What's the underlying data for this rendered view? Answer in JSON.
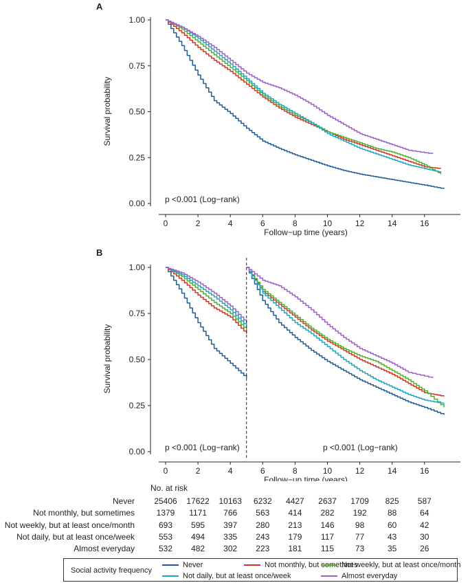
{
  "panels": [
    {
      "letter": "A",
      "ylabel": "Survival probability",
      "xlabel": "Follow−up time (years)",
      "yticks": [
        "0.00",
        "0.25",
        "0.50",
        "0.75",
        "1.00"
      ],
      "xticks": [
        "0",
        "2",
        "4",
        "6",
        "8",
        "10",
        "12",
        "14",
        "16"
      ],
      "annotations": [
        "p <0.001 (Log−rank)"
      ]
    },
    {
      "letter": "B",
      "ylabel": "Survival probability",
      "xlabel": "Follow−up time (years)",
      "yticks": [
        "0.00",
        "0.25",
        "0.50",
        "0.75",
        "1.00"
      ],
      "xticks": [
        "0",
        "2",
        "4",
        "6",
        "8",
        "10",
        "12",
        "14",
        "16"
      ],
      "annotations": [
        "p <0.001 (Log−rank)",
        "p <0.001 (Log−rank)"
      ]
    }
  ],
  "chart_data": [
    {
      "type": "line",
      "title": "A",
      "xlabel": "Follow−up time (years)",
      "ylabel": "Survival probability",
      "xlim": [
        -1,
        18.5
      ],
      "ylim": [
        0,
        1
      ],
      "series": [
        {
          "name": "Never",
          "color": "#1f5a96",
          "x": [
            0,
            1,
            2,
            3,
            4,
            5,
            6,
            7,
            8,
            9,
            10,
            11,
            12,
            13,
            14,
            15,
            16,
            17.2
          ],
          "y": [
            1.0,
            0.86,
            0.7,
            0.56,
            0.49,
            0.41,
            0.34,
            0.3,
            0.265,
            0.235,
            0.205,
            0.18,
            0.16,
            0.145,
            0.13,
            0.115,
            0.1,
            0.08
          ]
        },
        {
          "name": "Not monthly, but sometimes",
          "color": "#d7301f",
          "x": [
            0,
            1,
            2,
            3,
            4,
            5,
            6,
            7,
            8,
            9,
            10,
            11,
            12,
            13,
            14,
            15,
            16,
            17
          ],
          "y": [
            1.0,
            0.93,
            0.85,
            0.78,
            0.72,
            0.65,
            0.58,
            0.52,
            0.47,
            0.43,
            0.39,
            0.35,
            0.32,
            0.29,
            0.26,
            0.23,
            0.2,
            0.19
          ]
        },
        {
          "name": "Not weekly, but at least once/month",
          "color": "#4caf2a",
          "x": [
            0,
            1,
            2,
            3,
            4,
            5,
            6,
            7,
            8,
            9,
            10,
            11,
            12,
            13,
            14,
            15,
            16,
            17
          ],
          "y": [
            1.0,
            0.95,
            0.88,
            0.81,
            0.74,
            0.67,
            0.59,
            0.53,
            0.48,
            0.44,
            0.39,
            0.36,
            0.33,
            0.3,
            0.28,
            0.25,
            0.21,
            0.16
          ]
        },
        {
          "name": "Not daily, but at least once/week",
          "color": "#1aa5c4",
          "x": [
            0,
            1,
            2,
            3,
            4,
            5,
            6,
            7,
            8,
            9,
            10,
            11,
            12,
            13,
            14,
            15,
            16,
            17
          ],
          "y": [
            1.0,
            0.96,
            0.9,
            0.83,
            0.76,
            0.68,
            0.6,
            0.54,
            0.49,
            0.44,
            0.38,
            0.34,
            0.3,
            0.27,
            0.24,
            0.21,
            0.19,
            0.17
          ]
        },
        {
          "name": "Almost everyday",
          "color": "#9e5cc8",
          "x": [
            0,
            1,
            2,
            3,
            4,
            5,
            6,
            7,
            8,
            9,
            10,
            11,
            12,
            13,
            14,
            15,
            16.5
          ],
          "y": [
            1.0,
            0.96,
            0.91,
            0.85,
            0.78,
            0.71,
            0.66,
            0.63,
            0.59,
            0.54,
            0.48,
            0.43,
            0.38,
            0.35,
            0.32,
            0.29,
            0.27
          ]
        }
      ]
    },
    {
      "type": "line",
      "title": "B",
      "xlabel": "Follow−up time (years)",
      "ylabel": "Survival probability",
      "xlim": [
        -1,
        18.5
      ],
      "ylim": [
        0,
        1
      ],
      "breakpoint_x": 5,
      "series": [
        {
          "name": "Never",
          "color": "#1f5a96",
          "x": [
            0,
            1,
            2,
            3,
            4,
            5,
            5,
            6,
            7,
            8,
            9,
            10,
            11,
            12,
            13,
            14,
            15,
            16,
            17.2
          ],
          "y": [
            1.0,
            0.86,
            0.7,
            0.56,
            0.48,
            0.4,
            1.0,
            0.82,
            0.7,
            0.62,
            0.55,
            0.49,
            0.44,
            0.39,
            0.35,
            0.31,
            0.27,
            0.24,
            0.2
          ]
        },
        {
          "name": "Not monthly, but sometimes",
          "color": "#d7301f",
          "x": [
            0,
            1,
            2,
            3,
            4,
            5,
            5,
            6,
            7,
            8,
            9,
            10,
            11,
            12,
            13,
            14,
            15,
            16,
            17.2
          ],
          "y": [
            1.0,
            0.93,
            0.85,
            0.78,
            0.73,
            0.64,
            1.0,
            0.87,
            0.8,
            0.73,
            0.66,
            0.6,
            0.55,
            0.5,
            0.46,
            0.42,
            0.37,
            0.32,
            0.3
          ]
        },
        {
          "name": "Not weekly, but at least once/month",
          "color": "#4caf2a",
          "x": [
            0,
            1,
            2,
            3,
            4,
            5,
            5,
            6,
            7,
            8,
            9,
            10,
            11,
            12,
            13,
            14,
            15,
            16,
            17.2
          ],
          "y": [
            1.0,
            0.95,
            0.88,
            0.81,
            0.75,
            0.66,
            1.0,
            0.88,
            0.81,
            0.74,
            0.67,
            0.61,
            0.56,
            0.52,
            0.49,
            0.44,
            0.39,
            0.33,
            0.24
          ]
        },
        {
          "name": "Not daily, but at least once/week",
          "color": "#1aa5c4",
          "x": [
            0,
            1,
            2,
            3,
            4,
            5,
            5,
            6,
            7,
            8,
            9,
            10,
            11,
            12,
            13,
            14,
            15,
            16,
            17.2
          ],
          "y": [
            1.0,
            0.96,
            0.9,
            0.84,
            0.77,
            0.68,
            1.0,
            0.86,
            0.78,
            0.7,
            0.64,
            0.57,
            0.5,
            0.44,
            0.39,
            0.35,
            0.31,
            0.28,
            0.26
          ]
        },
        {
          "name": "Almost everyday",
          "color": "#9e5cc8",
          "x": [
            0,
            1,
            2,
            3,
            4,
            5,
            5,
            6,
            7,
            8,
            9,
            10,
            11,
            12,
            13,
            14,
            15,
            16.5
          ],
          "y": [
            1.0,
            0.97,
            0.92,
            0.86,
            0.79,
            0.7,
            1.0,
            0.93,
            0.9,
            0.84,
            0.77,
            0.69,
            0.62,
            0.56,
            0.52,
            0.48,
            0.43,
            0.4
          ]
        }
      ]
    }
  ],
  "risk_table": {
    "title": "No. at risk",
    "times": [
      0,
      2,
      4,
      6,
      8,
      10,
      12,
      14,
      16
    ],
    "rows": [
      {
        "label": "Never",
        "values": [
          "25406",
          "17622",
          "10163",
          "6232",
          "4427",
          "2637",
          "1709",
          "825",
          "587"
        ]
      },
      {
        "label": "Not monthly, but sometimes",
        "values": [
          "1379",
          "1171",
          "766",
          "563",
          "414",
          "282",
          "192",
          "88",
          "64"
        ]
      },
      {
        "label": "Not weekly, but at least once/month",
        "values": [
          "693",
          "595",
          "397",
          "280",
          "213",
          "146",
          "98",
          "60",
          "42"
        ]
      },
      {
        "label": "Not daily, but at least once/week",
        "values": [
          "553",
          "494",
          "335",
          "243",
          "179",
          "117",
          "77",
          "43",
          "30"
        ]
      },
      {
        "label": "Almost everyday",
        "values": [
          "532",
          "482",
          "302",
          "223",
          "181",
          "115",
          "73",
          "35",
          "26"
        ]
      }
    ]
  },
  "legend": {
    "title": "Social activity frequency",
    "items": [
      {
        "label": "Never",
        "color": "#1f5a96"
      },
      {
        "label": "Not monthly, but sometimes",
        "color": "#d7301f"
      },
      {
        "label": "Not weekly, but at least once/month",
        "color": "#4caf2a"
      },
      {
        "label": "Not daily, but at least once/week",
        "color": "#1aa5c4"
      },
      {
        "label": "Almost everyday",
        "color": "#9e5cc8"
      }
    ]
  }
}
